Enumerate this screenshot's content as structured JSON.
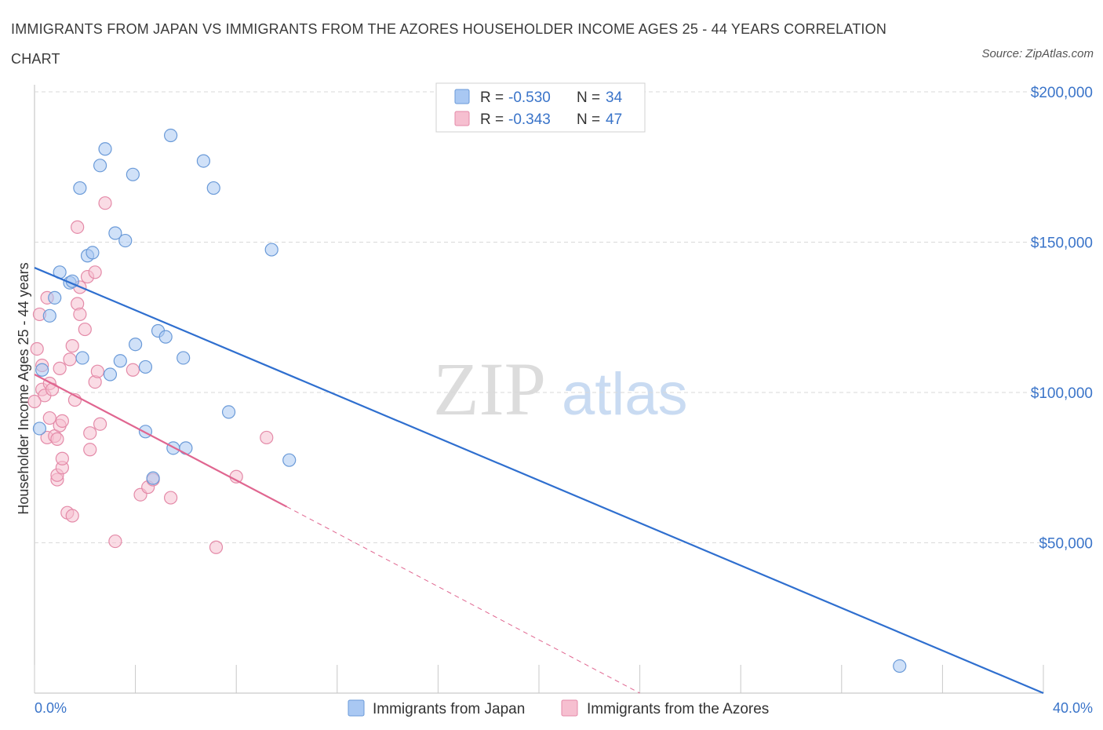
{
  "title": "IMMIGRANTS FROM JAPAN VS IMMIGRANTS FROM THE AZORES HOUSEHOLDER INCOME AGES 25 - 44 YEARS CORRELATION CHART",
  "source": "Source: ZipAtlas.com",
  "watermark": {
    "zip": "ZIP",
    "atlas": "atlas"
  },
  "legend": {
    "rows": [
      {
        "r_label": "R = ",
        "r_value": "-0.530",
        "n_label": "N = ",
        "n_value": "34"
      },
      {
        "r_label": "R = ",
        "r_value": "-0.343",
        "n_label": "N = ",
        "n_value": "47"
      }
    ]
  },
  "colors": {
    "japan_fill": "#a9c8f3",
    "japan_stroke": "#6a9ad8",
    "japan_line": "#2f6fcf",
    "azores_fill": "#f6bfd0",
    "azores_stroke": "#e48aa8",
    "azores_line": "#e06690",
    "tick_label": "#3a74c9",
    "grid": "#d9d9d9"
  },
  "chart_data": {
    "type": "scatter",
    "title": "IMMIGRANTS FROM JAPAN VS IMMIGRANTS FROM THE AZORES HOUSEHOLDER INCOME AGES 25 - 44 YEARS CORRELATION CHART",
    "xlabel": "",
    "ylabel": "Householder Income Ages 25 - 44 years",
    "xlim": [
      0,
      40
    ],
    "ylim": [
      0,
      200000
    ],
    "x_tick_labels": [
      "0.0%",
      "40.0%"
    ],
    "y_tick_labels": [
      "$50,000",
      "$100,000",
      "$150,000",
      "$200,000"
    ],
    "y_tick_values": [
      50000,
      100000,
      150000,
      200000
    ],
    "series": [
      {
        "name": "Immigrants from Japan",
        "r": -0.53,
        "n": 34,
        "trend": {
          "x": [
            0,
            40
          ],
          "y": [
            141500,
            0
          ]
        },
        "points": [
          [
            0.2,
            88000
          ],
          [
            0.3,
            107500
          ],
          [
            0.6,
            125500
          ],
          [
            0.8,
            131500
          ],
          [
            1.0,
            140000
          ],
          [
            1.4,
            136500
          ],
          [
            1.5,
            137000
          ],
          [
            1.8,
            168000
          ],
          [
            2.1,
            145500
          ],
          [
            2.3,
            146500
          ],
          [
            1.9,
            111500
          ],
          [
            2.6,
            175500
          ],
          [
            2.8,
            181000
          ],
          [
            3.0,
            106000
          ],
          [
            3.2,
            153000
          ],
          [
            3.4,
            110500
          ],
          [
            3.6,
            150500
          ],
          [
            3.9,
            172500
          ],
          [
            4.0,
            116000
          ],
          [
            4.4,
            108500
          ],
          [
            4.4,
            87000
          ],
          [
            4.7,
            71500
          ],
          [
            4.9,
            120500
          ],
          [
            5.2,
            118500
          ],
          [
            5.4,
            185500
          ],
          [
            5.5,
            81500
          ],
          [
            6.0,
            81500
          ],
          [
            5.9,
            111500
          ],
          [
            6.7,
            177000
          ],
          [
            7.1,
            168000
          ],
          [
            7.7,
            93500
          ],
          [
            9.4,
            147500
          ],
          [
            10.1,
            77500
          ],
          [
            34.3,
            9000
          ]
        ]
      },
      {
        "name": "Immigrants from the Azores",
        "r": -0.343,
        "n": 47,
        "trend": {
          "x": [
            0,
            10
          ],
          "y": [
            106000,
            62000
          ]
        },
        "trend_extension": {
          "x": [
            10,
            24
          ],
          "y": [
            62000,
            0
          ]
        },
        "points": [
          [
            0.1,
            114500
          ],
          [
            0.2,
            126000
          ],
          [
            0.3,
            109000
          ],
          [
            0.3,
            101000
          ],
          [
            0.4,
            99000
          ],
          [
            0.5,
            85000
          ],
          [
            0.5,
            131500
          ],
          [
            0.6,
            91500
          ],
          [
            0.6,
            103000
          ],
          [
            0.7,
            101000
          ],
          [
            0.8,
            85500
          ],
          [
            0.9,
            84500
          ],
          [
            0.9,
            71000
          ],
          [
            0.9,
            72500
          ],
          [
            1.0,
            108000
          ],
          [
            1.0,
            89000
          ],
          [
            1.1,
            75000
          ],
          [
            1.1,
            90500
          ],
          [
            1.1,
            78000
          ],
          [
            1.3,
            60000
          ],
          [
            1.4,
            111000
          ],
          [
            1.5,
            115500
          ],
          [
            1.5,
            59000
          ],
          [
            1.6,
            97500
          ],
          [
            1.7,
            155000
          ],
          [
            1.7,
            129500
          ],
          [
            1.8,
            126000
          ],
          [
            1.8,
            135000
          ],
          [
            2.0,
            121000
          ],
          [
            2.1,
            138500
          ],
          [
            2.2,
            81000
          ],
          [
            2.2,
            86500
          ],
          [
            2.4,
            140000
          ],
          [
            2.4,
            103500
          ],
          [
            2.5,
            107000
          ],
          [
            2.6,
            89500
          ],
          [
            2.8,
            163000
          ],
          [
            3.2,
            50500
          ],
          [
            3.9,
            107500
          ],
          [
            4.2,
            66000
          ],
          [
            4.5,
            68500
          ],
          [
            4.7,
            71000
          ],
          [
            5.4,
            65000
          ],
          [
            7.2,
            48500
          ],
          [
            8.0,
            72000
          ],
          [
            9.2,
            85000
          ],
          [
            0.0,
            97000
          ]
        ]
      }
    ]
  },
  "bottom_legend": [
    {
      "label": "Immigrants from Japan"
    },
    {
      "label": "Immigrants from the Azores"
    }
  ]
}
